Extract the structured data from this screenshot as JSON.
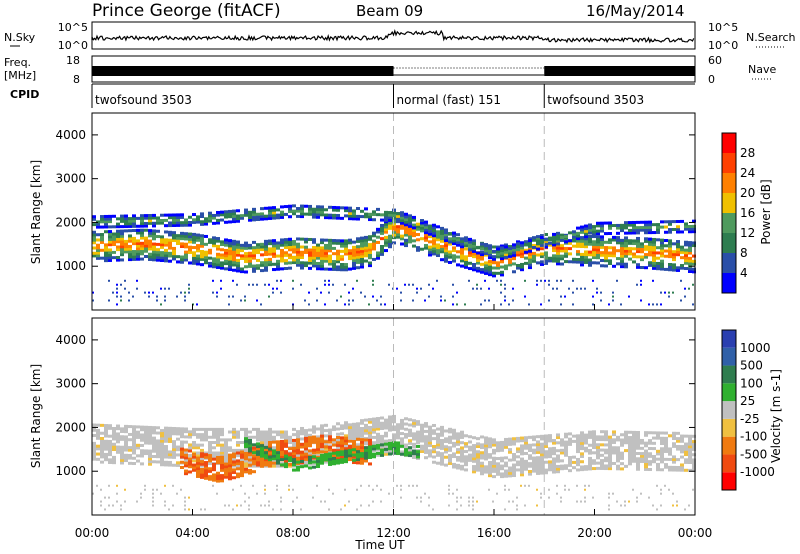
{
  "header": {
    "station": "Prince George (fitACF)",
    "beam": "Beam 09",
    "date": "16/May/2014"
  },
  "strips": {
    "nsky_label": "N.Sky",
    "nsky_ticks": [
      "10^5",
      "10^0"
    ],
    "nsearch_label": "N.Search",
    "nsearch_ticks": [
      "10^5",
      "10^0"
    ],
    "freq_label": "Freq.",
    "freq_unit": "[MHz]",
    "freq_ticks": [
      "18",
      "8"
    ],
    "nave_label": "Nave",
    "nave_ticks": [
      "60",
      "0"
    ],
    "cpid_label": "CPID",
    "cpid_segments": [
      {
        "label": "twofsound 3503",
        "start_hour": 0,
        "end_hour": 12
      },
      {
        "label": "normal (fast) 151",
        "start_hour": 12,
        "end_hour": 18
      },
      {
        "label": "twofsound 3503",
        "start_hour": 18,
        "end_hour": 24
      }
    ]
  },
  "x_axis": {
    "title": "Time UT",
    "tick_labels": [
      "00:00",
      "04:00",
      "08:00",
      "12:00",
      "16:00",
      "20:00",
      "00:00"
    ],
    "range_hours": [
      0,
      24
    ]
  },
  "colors": {
    "power": [
      "#0000ff",
      "#2a4fa8",
      "#2e7d50",
      "#4f9a5e",
      "#f0c000",
      "#ff8000",
      "#ff4000",
      "#ff0000"
    ],
    "velocity": [
      "#2a3fb0",
      "#3060a8",
      "#2f7d4f",
      "#30b030",
      "#c0c0c0",
      "#f0c040",
      "#f07a10",
      "#f04a10",
      "#ff0000"
    ]
  },
  "chart_data": [
    {
      "type": "heatmap",
      "name": "Power",
      "xlabel": "Time UT",
      "ylabel": "Slant Range [km]",
      "xlim": [
        0,
        24
      ],
      "ylim": [
        0,
        4500
      ],
      "y_tick_labels": [
        "1000",
        "2000",
        "3000",
        "4000"
      ],
      "colorbar_label": "Power [dB]",
      "colorbar_ticks": [
        "4",
        "8",
        "12",
        "16",
        "20",
        "24",
        "28"
      ],
      "colorbar_range": [
        0,
        32
      ],
      "bands": [
        {
          "x": [
            0,
            2,
            4,
            6,
            8,
            10,
            11,
            12,
            14,
            16,
            18,
            20,
            22,
            24
          ],
          "center_km": [
            1500,
            1550,
            1450,
            1250,
            1350,
            1300,
            1400,
            1950,
            1500,
            1150,
            1450,
            1400,
            1350,
            1250
          ],
          "width_km": 700,
          "peak_dB": 24
        },
        {
          "x": [
            0,
            4,
            8,
            12,
            16,
            20,
            24
          ],
          "center_km": [
            2050,
            2100,
            2300,
            2200,
            1300,
            1900,
            1950
          ],
          "width_km": 250,
          "peak_dB": 14
        }
      ]
    },
    {
      "type": "heatmap",
      "name": "Velocity",
      "xlabel": "Time UT",
      "ylabel": "Slant Range [km]",
      "xlim": [
        0,
        24
      ],
      "ylim": [
        0,
        4500
      ],
      "y_tick_labels": [
        "1000",
        "2000",
        "3000",
        "4000"
      ],
      "colorbar_label": "Velocity [m s-1]",
      "colorbar_ticks": [
        "1000",
        "500",
        "100",
        "25",
        "-25",
        "-100",
        "-500",
        "-1000"
      ],
      "bands": [
        {
          "x": [
            0,
            4,
            8,
            12,
            16,
            20,
            24
          ],
          "center_km": [
            1700,
            1600,
            1600,
            1900,
            1350,
            1550,
            1500
          ],
          "width_km": 900,
          "velocity_ms": 0
        },
        {
          "x": [
            3.5,
            5,
            6,
            7,
            8,
            9,
            10,
            11
          ],
          "center_km": [
            1300,
            1100,
            1250,
            1450,
            1500,
            1600,
            1550,
            1500
          ],
          "width_km": 600,
          "velocity_ms": -200
        },
        {
          "x": [
            6,
            8,
            10,
            12,
            13
          ],
          "center_km": [
            1700,
            1200,
            1400,
            1600,
            1500
          ],
          "width_km": 300,
          "velocity_ms": 150
        }
      ]
    }
  ]
}
